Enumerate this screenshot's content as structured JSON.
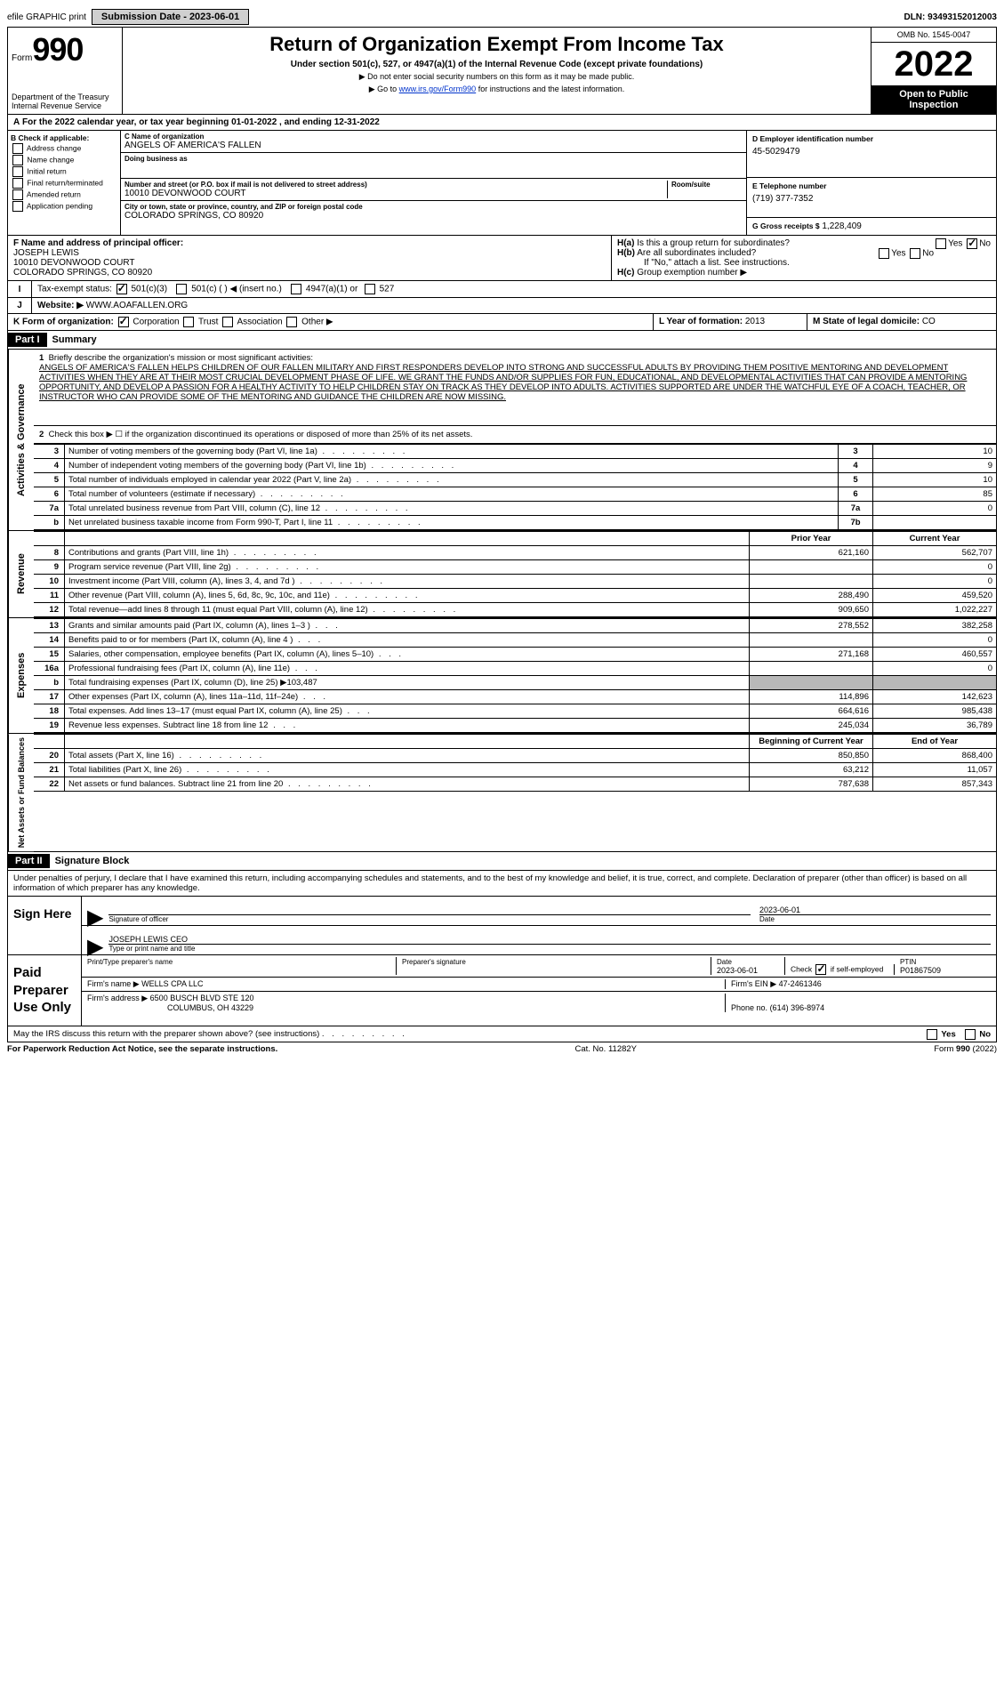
{
  "top": {
    "efile": "efile GRAPHIC print",
    "submission_label": "Submission Date - 2023-06-01",
    "dln": "DLN: 93493152012003"
  },
  "header": {
    "form_word": "Form",
    "form_num": "990",
    "dept": "Department of the Treasury",
    "irs": "Internal Revenue Service",
    "title": "Return of Organization Exempt From Income Tax",
    "subtitle": "Under section 501(c), 527, or 4947(a)(1) of the Internal Revenue Code (except private foundations)",
    "line2": "Do not enter social security numbers on this form as it may be made public.",
    "line3_pre": "Go to ",
    "line3_link": "www.irs.gov/Form990",
    "line3_post": " for instructions and the latest information.",
    "omb": "OMB No. 1545-0047",
    "year": "2022",
    "open": "Open to Public Inspection"
  },
  "sectionA": "For the 2022 calendar year, or tax year beginning 01-01-2022  , and ending 12-31-2022",
  "sectionB": {
    "header": "B Check if applicable:",
    "address_change": "Address change",
    "name_change": "Name change",
    "initial_return": "Initial return",
    "final_return": "Final return/terminated",
    "amended_return": "Amended return",
    "application_pending": "Application pending"
  },
  "sectionC": {
    "name_label": "C Name of organization",
    "name": "ANGELS OF AMERICA'S FALLEN",
    "dba_label": "Doing business as",
    "dba": "",
    "street_label": "Number and street (or P.O. box if mail is not delivered to street address)",
    "street": "10010 DEVONWOOD COURT",
    "room_label": "Room/suite",
    "room": "",
    "city_label": "City or town, state or province, country, and ZIP or foreign postal code",
    "city": "COLORADO SPRINGS, CO  80920"
  },
  "sectionD": {
    "label": "D Employer identification number",
    "value": "45-5029479"
  },
  "sectionE": {
    "label": "E Telephone number",
    "value": "(719) 377-7352"
  },
  "sectionG": {
    "label": "G Gross receipts $",
    "value": "1,228,409"
  },
  "sectionF": {
    "label": "F Name and address of principal officer:",
    "name": "JOSEPH LEWIS",
    "street": "10010 DEVONWOOD COURT",
    "city": "COLORADO SPRINGS, CO  80920"
  },
  "sectionH": {
    "a": "Is this a group return for subordinates?",
    "b": "Are all subordinates included?",
    "b_note": "If \"No,\" attach a list. See instructions.",
    "c": "Group exemption number ▶",
    "yes": "Yes",
    "no": "No"
  },
  "sectionI": {
    "label": "Tax-exempt status:",
    "c3": "501(c)(3)",
    "c_other": "501(c) (  ) ◀ (insert no.)",
    "a4947": "4947(a)(1) or",
    "s527": "527"
  },
  "sectionJ": {
    "label": "Website: ▶",
    "value": "WWW.AOAFALLEN.ORG"
  },
  "sectionK": {
    "label": "K Form of organization:",
    "corp": "Corporation",
    "trust": "Trust",
    "assoc": "Association",
    "other": "Other ▶"
  },
  "sectionL": {
    "label": "L Year of formation:",
    "value": "2013"
  },
  "sectionM": {
    "label": "M State of legal domicile:",
    "value": "CO"
  },
  "part1": {
    "header": "Part I",
    "title": "Summary",
    "line1_label": "Briefly describe the organization's mission or most significant activities:",
    "mission": "ANGELS OF AMERICA'S FALLEN HELPS CHILDREN OF OUR FALLEN MILITARY AND FIRST RESPONDERS DEVELOP INTO STRONG AND SUCCESSFUL ADULTS BY PROVIDING THEM POSITIVE MENTORING AND DEVELOPMENT ACTIVITIES WHEN THEY ARE AT THEIR MOST CRUCIAL DEVELOPMENT PHASE OF LIFE. WE GRANT THE FUNDS AND/OR SUPPLIES FOR FUN, EDUCATIONAL, AND DEVELOPMENTAL ACTIVITIES THAT CAN PROVIDE A MENTORING OPPORTUNITY, AND DEVELOP A PASSION FOR A HEALTHY ACTIVITY TO HELP CHILDREN STAY ON TRACK AS THEY DEVELOP INTO ADULTS. ACTIVITIES SUPPORTED ARE UNDER THE WATCHFUL EYE OF A COACH, TEACHER, OR INSTRUCTOR WHO CAN PROVIDE SOME OF THE MENTORING AND GUIDANCE THE CHILDREN ARE NOW MISSING.",
    "line2": "Check this box ▶ ☐  if the organization discontinued its operations or disposed of more than 25% of its net assets.",
    "governance_label": "Activities & Governance",
    "revenue_label": "Revenue",
    "expenses_label": "Expenses",
    "netassets_label": "Net Assets or Fund Balances",
    "prior_year": "Prior Year",
    "current_year": "Current Year",
    "begin_year": "Beginning of Current Year",
    "end_year": "End of Year",
    "rows_gov": [
      {
        "n": "3",
        "d": "Number of voting members of the governing body (Part VI, line 1a)",
        "c": "3",
        "v": "10"
      },
      {
        "n": "4",
        "d": "Number of independent voting members of the governing body (Part VI, line 1b)",
        "c": "4",
        "v": "9"
      },
      {
        "n": "5",
        "d": "Total number of individuals employed in calendar year 2022 (Part V, line 2a)",
        "c": "5",
        "v": "10"
      },
      {
        "n": "6",
        "d": "Total number of volunteers (estimate if necessary)",
        "c": "6",
        "v": "85"
      },
      {
        "n": "7a",
        "d": "Total unrelated business revenue from Part VIII, column (C), line 12",
        "c": "7a",
        "v": "0"
      },
      {
        "n": "b",
        "d": "Net unrelated business taxable income from Form 990-T, Part I, line 11",
        "c": "7b",
        "v": ""
      }
    ],
    "rows_rev": [
      {
        "n": "8",
        "d": "Contributions and grants (Part VIII, line 1h)",
        "p": "621,160",
        "c": "562,707"
      },
      {
        "n": "9",
        "d": "Program service revenue (Part VIII, line 2g)",
        "p": "",
        "c": "0"
      },
      {
        "n": "10",
        "d": "Investment income (Part VIII, column (A), lines 3, 4, and 7d )",
        "p": "",
        "c": "0"
      },
      {
        "n": "11",
        "d": "Other revenue (Part VIII, column (A), lines 5, 6d, 8c, 9c, 10c, and 11e)",
        "p": "288,490",
        "c": "459,520"
      },
      {
        "n": "12",
        "d": "Total revenue—add lines 8 through 11 (must equal Part VIII, column (A), line 12)",
        "p": "909,650",
        "c": "1,022,227"
      }
    ],
    "rows_exp": [
      {
        "n": "13",
        "d": "Grants and similar amounts paid (Part IX, column (A), lines 1–3 )",
        "p": "278,552",
        "c": "382,258"
      },
      {
        "n": "14",
        "d": "Benefits paid to or for members (Part IX, column (A), line 4 )",
        "p": "",
        "c": "0"
      },
      {
        "n": "15",
        "d": "Salaries, other compensation, employee benefits (Part IX, column (A), lines 5–10)",
        "p": "271,168",
        "c": "460,557"
      },
      {
        "n": "16a",
        "d": "Professional fundraising fees (Part IX, column (A), line 11e)",
        "p": "",
        "c": "0"
      },
      {
        "n": "b",
        "d": "Total fundraising expenses (Part IX, column (D), line 25) ▶103,487",
        "p": "shaded",
        "c": "shaded"
      },
      {
        "n": "17",
        "d": "Other expenses (Part IX, column (A), lines 11a–11d, 11f–24e)",
        "p": "114,896",
        "c": "142,623"
      },
      {
        "n": "18",
        "d": "Total expenses. Add lines 13–17 (must equal Part IX, column (A), line 25)",
        "p": "664,616",
        "c": "985,438"
      },
      {
        "n": "19",
        "d": "Revenue less expenses. Subtract line 18 from line 12",
        "p": "245,034",
        "c": "36,789"
      }
    ],
    "rows_net": [
      {
        "n": "20",
        "d": "Total assets (Part X, line 16)",
        "p": "850,850",
        "c": "868,400"
      },
      {
        "n": "21",
        "d": "Total liabilities (Part X, line 26)",
        "p": "63,212",
        "c": "11,057"
      },
      {
        "n": "22",
        "d": "Net assets or fund balances. Subtract line 21 from line 20",
        "p": "787,638",
        "c": "857,343"
      }
    ]
  },
  "part2": {
    "header": "Part II",
    "title": "Signature Block",
    "penalties": "Under penalties of perjury, I declare that I have examined this return, including accompanying schedules and statements, and to the best of my knowledge and belief, it is true, correct, and complete. Declaration of preparer (other than officer) is based on all information of which preparer has any knowledge.",
    "sign_here": "Sign Here",
    "sig_officer": "Signature of officer",
    "date_label": "Date",
    "date_val": "2023-06-01",
    "officer_name": "JOSEPH LEWIS CEO",
    "type_name": "Type or print name and title",
    "paid_preparer": "Paid Preparer Use Only",
    "print_name": "Print/Type preparer's name",
    "prep_sig": "Preparer's signature",
    "prep_date": "2023-06-01",
    "check_if": "Check",
    "self_emp": "if self-employed",
    "ptin_label": "PTIN",
    "ptin": "P01867509",
    "firm_name_label": "Firm's name    ▶",
    "firm_name": "WELLS CPA LLC",
    "firm_ein_label": "Firm's EIN ▶",
    "firm_ein": "47-2461346",
    "firm_addr_label": "Firm's address ▶",
    "firm_addr1": "6500 BUSCH BLVD STE 120",
    "firm_addr2": "COLUMBUS, OH  43229",
    "phone_label": "Phone no.",
    "phone": "(614) 396-8974",
    "discuss": "May the IRS discuss this return with the preparer shown above? (see instructions)",
    "paperwork": "For Paperwork Reduction Act Notice, see the separate instructions.",
    "cat": "Cat. No. 11282Y",
    "form_foot": "Form 990 (2022)"
  }
}
